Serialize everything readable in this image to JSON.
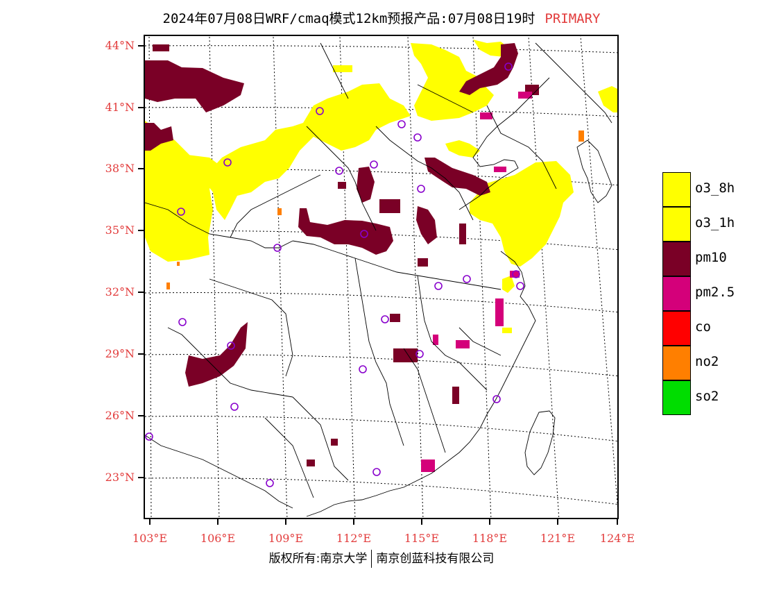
{
  "title": {
    "main": "2024年07月08日WRF/cmaq模式12km预报产品:07月08日19时",
    "tag": "PRIMARY"
  },
  "axes": {
    "lat_labels": [
      "44°N",
      "41°N",
      "38°N",
      "35°N",
      "32°N",
      "29°N",
      "26°N",
      "23°N"
    ],
    "lon_labels": [
      "103°E",
      "106°E",
      "109°E",
      "112°E",
      "115°E",
      "118°E",
      "121°E",
      "124°E"
    ]
  },
  "legend": [
    {
      "label": "o3_8h",
      "color": "#ffff00"
    },
    {
      "label": "o3_1h",
      "color": "#ffff00"
    },
    {
      "label": "pm10",
      "color": "#7a0026"
    },
    {
      "label": "pm2.5",
      "color": "#d4007a"
    },
    {
      "label": "co",
      "color": "#ff0000"
    },
    {
      "label": "no2",
      "color": "#ff7f00"
    },
    {
      "label": "so2",
      "color": "#00dd00"
    }
  ],
  "footer": {
    "left": "版权所有:南京大学",
    "right": "南京创蓝科技有限公司"
  },
  "map_colors": {
    "o3": "#ffff00",
    "pm10": "#7a0026",
    "pm25": "#d4007a",
    "no2": "#ff7f00",
    "station": "#8800cc"
  }
}
